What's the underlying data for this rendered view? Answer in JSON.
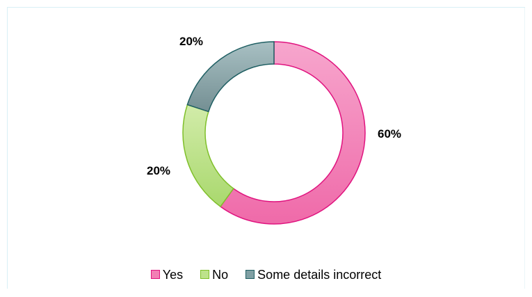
{
  "chart_data": {
    "type": "pie",
    "donut": true,
    "categories": [
      "Yes",
      "No",
      "Some details incorrect"
    ],
    "values": [
      60,
      20,
      20
    ],
    "data_labels": [
      "60%",
      "20%",
      "20%"
    ],
    "colors": [
      "#f27fb4",
      "#bde28b",
      "#7f9fa3"
    ],
    "stroke_colors": [
      "#e0137f",
      "#7fbf2a",
      "#1f5f63"
    ],
    "legend_placement": "bottom"
  },
  "legend": {
    "items": [
      {
        "label": "Yes"
      },
      {
        "label": "No"
      },
      {
        "label": "Some details incorrect"
      }
    ]
  }
}
